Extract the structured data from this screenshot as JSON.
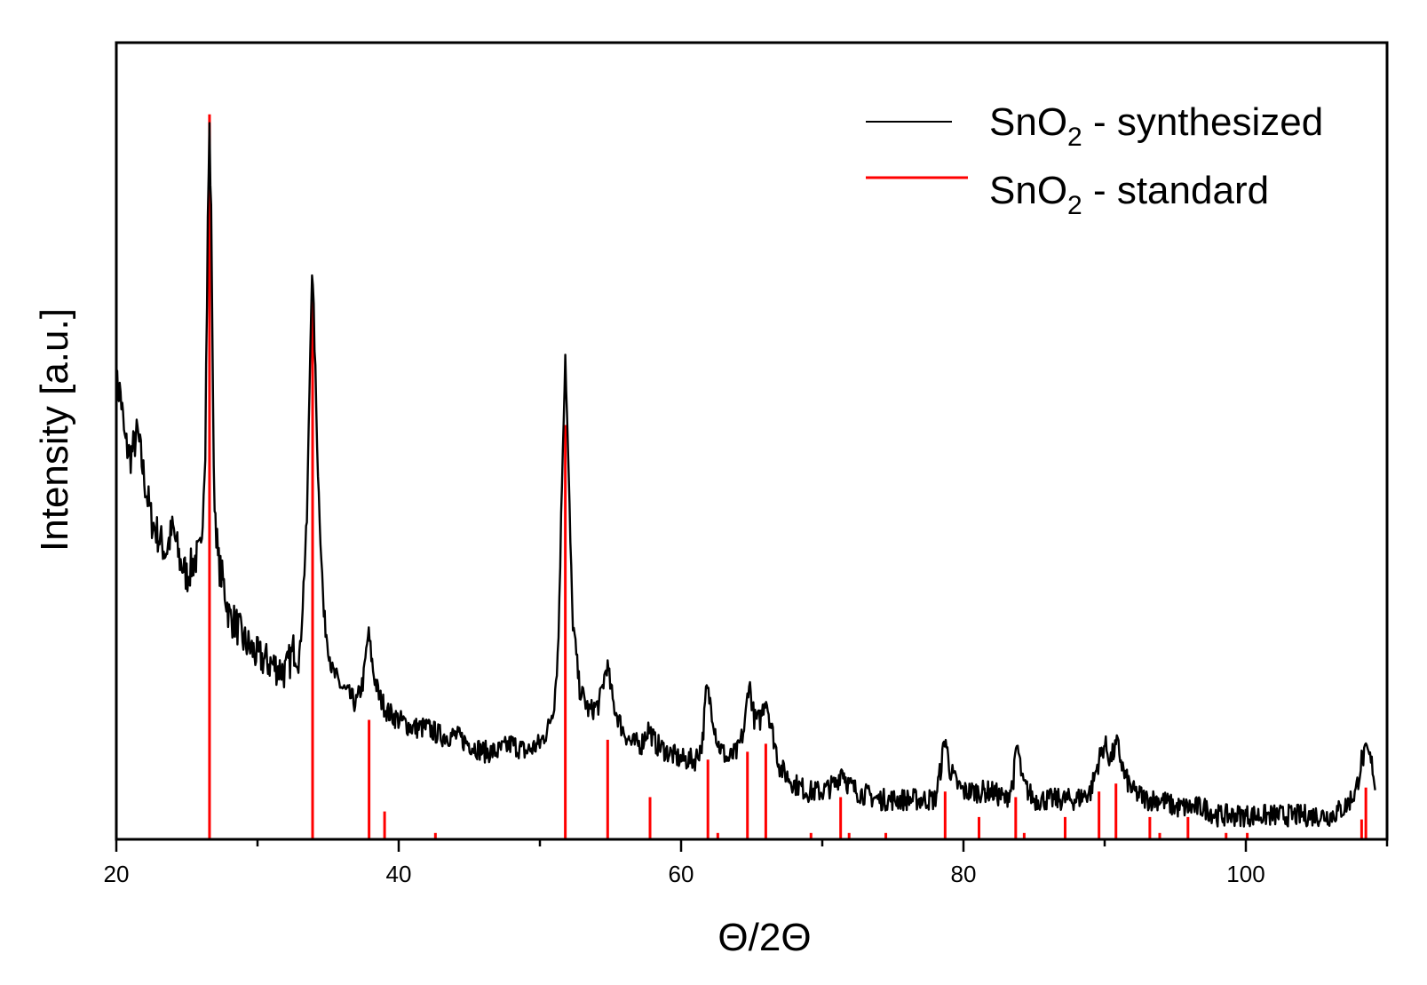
{
  "chart_data": {
    "type": "line",
    "title": "",
    "xlabel": "Θ/2Θ",
    "ylabel": "Intensity [a.u.]",
    "xlim": [
      20,
      110
    ],
    "ylim": [
      0,
      100
    ],
    "x_ticks": [
      20,
      40,
      60,
      80,
      100
    ],
    "x_minor_step": 10,
    "y_ticks_shown": false,
    "grid": false,
    "legend_position": "top-right",
    "series": [
      {
        "name": "SnO2 - synthesized",
        "legend_main": "SnO",
        "legend_sub": "2",
        "legend_rest": " - synthesized",
        "color": "#000000",
        "kind": "line",
        "points": [
          [
            20,
            57
          ],
          [
            20.3,
            56
          ],
          [
            20.6,
            50
          ],
          [
            21,
            48
          ],
          [
            21.5,
            51
          ],
          [
            22,
            45
          ],
          [
            22.5,
            40
          ],
          [
            23,
            38
          ],
          [
            23.5,
            36
          ],
          [
            24,
            39
          ],
          [
            24.5,
            35
          ],
          [
            25,
            33
          ],
          [
            25.5,
            35
          ],
          [
            26,
            36
          ],
          [
            26.3,
            50
          ],
          [
            26.5,
            80
          ],
          [
            26.6,
            89
          ],
          [
            26.75,
            75
          ],
          [
            26.9,
            45
          ],
          [
            27.2,
            35
          ],
          [
            27.6,
            32
          ],
          [
            28,
            28
          ],
          [
            28.5,
            27
          ],
          [
            29,
            25
          ],
          [
            29.5,
            24
          ],
          [
            30,
            23
          ],
          [
            31,
            22
          ],
          [
            32,
            21
          ],
          [
            32.6,
            24
          ],
          [
            33,
            23
          ],
          [
            33.5,
            40
          ],
          [
            33.85,
            72
          ],
          [
            34,
            65
          ],
          [
            34.3,
            45
          ],
          [
            34.7,
            28
          ],
          [
            35.3,
            21
          ],
          [
            36,
            19
          ],
          [
            36.5,
            18
          ],
          [
            37,
            17
          ],
          [
            37.5,
            20
          ],
          [
            37.85,
            26
          ],
          [
            38.2,
            21
          ],
          [
            38.6,
            18
          ],
          [
            39.2,
            16
          ],
          [
            40,
            15
          ],
          [
            41,
            14
          ],
          [
            42,
            14
          ],
          [
            43,
            13
          ],
          [
            44,
            13
          ],
          [
            45,
            12
          ],
          [
            46,
            11
          ],
          [
            47,
            11
          ],
          [
            48,
            12
          ],
          [
            49,
            11
          ],
          [
            50,
            12
          ],
          [
            50.6,
            14
          ],
          [
            51,
            17
          ],
          [
            51.3,
            24
          ],
          [
            51.6,
            48
          ],
          [
            51.8,
            61
          ],
          [
            52,
            48
          ],
          [
            52.3,
            28
          ],
          [
            52.8,
            19
          ],
          [
            53.5,
            16
          ],
          [
            54.2,
            17
          ],
          [
            54.75,
            22
          ],
          [
            55.2,
            17
          ],
          [
            55.8,
            14
          ],
          [
            56.5,
            12
          ],
          [
            57.2,
            12
          ],
          [
            57.7,
            14
          ],
          [
            58.2,
            12
          ],
          [
            59,
            11
          ],
          [
            60,
            10
          ],
          [
            61,
            10
          ],
          [
            61.5,
            12
          ],
          [
            61.8,
            19
          ],
          [
            62.1,
            17
          ],
          [
            62.6,
            12
          ],
          [
            63.3,
            10
          ],
          [
            64,
            11
          ],
          [
            64.5,
            14
          ],
          [
            64.8,
            20
          ],
          [
            65.2,
            15
          ],
          [
            65.6,
            15
          ],
          [
            66,
            18
          ],
          [
            66.4,
            14
          ],
          [
            67,
            9
          ],
          [
            67.5,
            8
          ],
          [
            68,
            7
          ],
          [
            69,
            6
          ],
          [
            70,
            6
          ],
          [
            71,
            7
          ],
          [
            71.4,
            9
          ],
          [
            71.8,
            7
          ],
          [
            72.5,
            6
          ],
          [
            74,
            5
          ],
          [
            75,
            5
          ],
          [
            76,
            5
          ],
          [
            77,
            5
          ],
          [
            78,
            5
          ],
          [
            78.4,
            9
          ],
          [
            78.7,
            13
          ],
          [
            79,
            9
          ],
          [
            79.5,
            7
          ],
          [
            80,
            6
          ],
          [
            81,
            6
          ],
          [
            82,
            6
          ],
          [
            83,
            5
          ],
          [
            83.5,
            7
          ],
          [
            83.8,
            12
          ],
          [
            84.2,
            7
          ],
          [
            85,
            5
          ],
          [
            86,
            5
          ],
          [
            87,
            5
          ],
          [
            88,
            5
          ],
          [
            89,
            6
          ],
          [
            89.6,
            10
          ],
          [
            90,
            12
          ],
          [
            90.4,
            10
          ],
          [
            90.9,
            12
          ],
          [
            91.4,
            8
          ],
          [
            92,
            6
          ],
          [
            93,
            5
          ],
          [
            94,
            5
          ],
          [
            95,
            4
          ],
          [
            96,
            4
          ],
          [
            97,
            4
          ],
          [
            98,
            3
          ],
          [
            99,
            3
          ],
          [
            100,
            3
          ],
          [
            101,
            3
          ],
          [
            102,
            3
          ],
          [
            103,
            3
          ],
          [
            104,
            3
          ],
          [
            105,
            3
          ],
          [
            106,
            3
          ],
          [
            107,
            4
          ],
          [
            107.8,
            6
          ],
          [
            108.2,
            10
          ],
          [
            108.6,
            11
          ],
          [
            109,
            9
          ],
          [
            109.2,
            6
          ]
        ]
      },
      {
        "name": "SnO2 - standard",
        "legend_main": "SnO",
        "legend_sub": "2",
        "legend_rest": " - standard",
        "color": "#ff0000",
        "kind": "stick",
        "sticks": [
          [
            26.6,
            91
          ],
          [
            33.9,
            68
          ],
          [
            37.9,
            15
          ],
          [
            39,
            3.5
          ],
          [
            42.6,
            0.8
          ],
          [
            51.8,
            52
          ],
          [
            54.8,
            12.5
          ],
          [
            57.8,
            5.3
          ],
          [
            61.9,
            10
          ],
          [
            62.6,
            0.8
          ],
          [
            64.7,
            11
          ],
          [
            66,
            12
          ],
          [
            69.2,
            0.8
          ],
          [
            71.3,
            5.3
          ],
          [
            71.9,
            0.8
          ],
          [
            74.5,
            0.8
          ],
          [
            78.7,
            6
          ],
          [
            81.1,
            2.8
          ],
          [
            83.7,
            5.3
          ],
          [
            84.3,
            0.8
          ],
          [
            87.2,
            2.8
          ],
          [
            89.6,
            6
          ],
          [
            90.8,
            7
          ],
          [
            93.2,
            2.8
          ],
          [
            93.9,
            0.8
          ],
          [
            95.9,
            2.8
          ],
          [
            98.6,
            0.8
          ],
          [
            100.1,
            0.8
          ],
          [
            108.2,
            2.5
          ],
          [
            108.5,
            6.5
          ]
        ]
      }
    ]
  }
}
